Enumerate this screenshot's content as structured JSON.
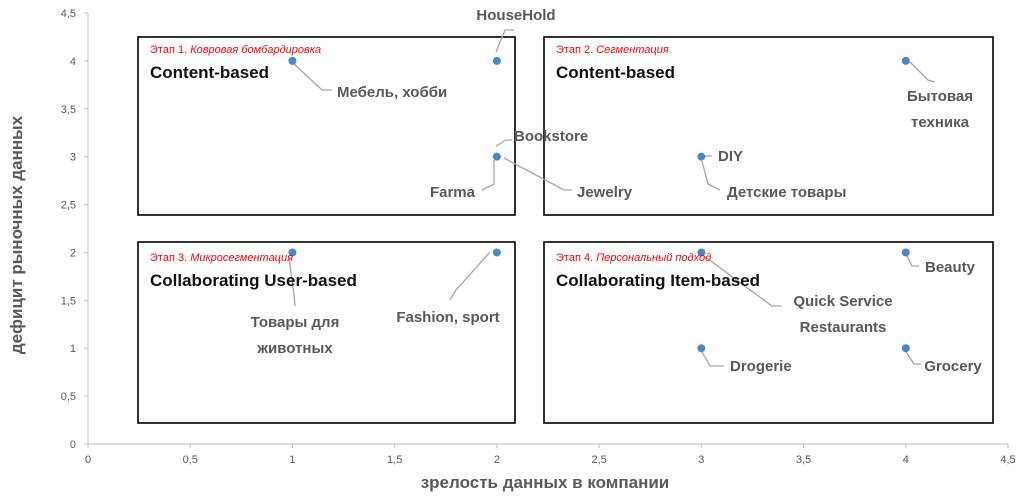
{
  "chart_data": {
    "type": "scatter",
    "title": "",
    "xlabel": "зрелость данных в компании",
    "ylabel": "дефицит рыночных данных",
    "xlim": [
      0,
      4.5
    ],
    "ylim": [
      0,
      4.5
    ],
    "x_ticks": [
      "0",
      "0,5",
      "1",
      "1,5",
      "2",
      "2,5",
      "3",
      "3,5",
      "4",
      "4,5"
    ],
    "y_ticks": [
      "0",
      "0,5",
      "1",
      "1,5",
      "2",
      "2,5",
      "3",
      "3,5",
      "4",
      "4,5"
    ],
    "grid": false,
    "marker_color": "#4a86c8",
    "points": [
      {
        "x": 1,
        "y": 4,
        "label": "Мебель, хобби"
      },
      {
        "x": 2,
        "y": 4,
        "label": "HouseHold"
      },
      {
        "x": 2,
        "y": 3,
        "label": "Bookstore"
      },
      {
        "x": 2,
        "y": 3,
        "label": "Farma"
      },
      {
        "x": 2,
        "y": 3,
        "label": "Jewelry"
      },
      {
        "x": 3,
        "y": 3,
        "label": "DIY"
      },
      {
        "x": 3,
        "y": 3,
        "label": "Детские товары"
      },
      {
        "x": 4,
        "y": 4,
        "label": "Бытовая техника"
      },
      {
        "x": 1,
        "y": 2,
        "label": "Товары для животных"
      },
      {
        "x": 2,
        "y": 2,
        "label": "Fashion, sport"
      },
      {
        "x": 3,
        "y": 2,
        "label": "Quick Service Restaurants"
      },
      {
        "x": 4,
        "y": 2,
        "label": "Beauty"
      },
      {
        "x": 3,
        "y": 1,
        "label": "Drogerie"
      },
      {
        "x": 4,
        "y": 1,
        "label": "Grocery"
      }
    ],
    "quadrants": [
      {
        "stage_prefix": "Этап 1. ",
        "stage_name": "Ковровая бомбардировка",
        "method": "Content-based"
      },
      {
        "stage_prefix": "Этап 2. ",
        "stage_name": "Сегментация",
        "method": "Content-based"
      },
      {
        "stage_prefix": "Этап 3. ",
        "stage_name": "Микросегментация",
        "method": "Collaborating User-based"
      },
      {
        "stage_prefix": "Этап 4. ",
        "stage_name": "Персональный подход",
        "method": "Collaborating Item-based"
      }
    ]
  }
}
